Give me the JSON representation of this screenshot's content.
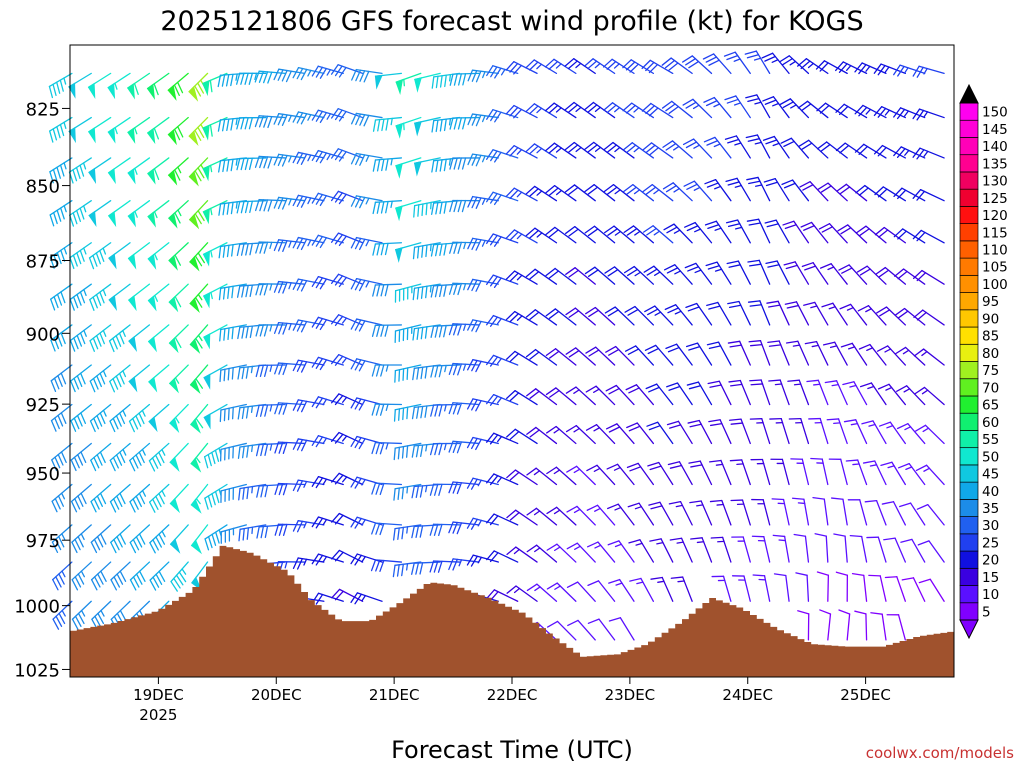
{
  "chart_data": {
    "type": "wind-barb-profile",
    "title": "2025121806 GFS forecast wind profile (kt) for KOGS",
    "xlabel": "Forecast Time (UTC)",
    "ylabel": "",
    "credit": "coolwx.com/models",
    "x_range_days_dec2025": [
      18.25,
      25.75
    ],
    "y_range_hPa": [
      805,
      1028
    ],
    "y_scale": "log-pressure (inverted)",
    "y_ticks": [
      {
        "value": 825,
        "label": "825"
      },
      {
        "value": 850,
        "label": "850"
      },
      {
        "value": 875,
        "label": "875"
      },
      {
        "value": 900,
        "label": "900"
      },
      {
        "value": 925,
        "label": "925"
      },
      {
        "value": 950,
        "label": "950"
      },
      {
        "value": 975,
        "label": "975"
      },
      {
        "value": 1000,
        "label": "1000"
      },
      {
        "value": 1025,
        "label": "1025"
      }
    ],
    "x_ticks": [
      {
        "value": 19,
        "label": "19DEC",
        "sublabel": "2025"
      },
      {
        "value": 20,
        "label": "20DEC",
        "sublabel": ""
      },
      {
        "value": 21,
        "label": "21DEC",
        "sublabel": ""
      },
      {
        "value": 22,
        "label": "22DEC",
        "sublabel": ""
      },
      {
        "value": 23,
        "label": "23DEC",
        "sublabel": ""
      },
      {
        "value": 24,
        "label": "24DEC",
        "sublabel": ""
      },
      {
        "value": 25,
        "label": "25DEC",
        "sublabel": ""
      }
    ],
    "barb_levels_hPa": [
      812,
      826,
      839,
      853,
      867,
      881,
      895,
      909,
      923,
      937,
      952,
      967,
      981,
      996,
      1011
    ],
    "wind_keyframes": [
      {
        "day": 18.25,
        "speed_low": 32,
        "speed_high": 46,
        "dir_low": 225,
        "dir_high": 240
      },
      {
        "day": 19.1,
        "speed_low": 38,
        "speed_high": 60,
        "dir_low": 225,
        "dir_high": 235
      },
      {
        "day": 19.45,
        "speed_low": 44,
        "speed_high": 78,
        "dir_low": 215,
        "dir_high": 225
      },
      {
        "day": 19.75,
        "speed_low": 35,
        "speed_high": 45,
        "dir_low": 250,
        "dir_high": 265
      },
      {
        "day": 20.3,
        "speed_low": 24,
        "speed_high": 38,
        "dir_low": 270,
        "dir_high": 280
      },
      {
        "day": 20.8,
        "speed_low": 18,
        "speed_high": 32,
        "dir_low": 300,
        "dir_high": 290
      },
      {
        "day": 21.25,
        "speed_low": 28,
        "speed_high": 56,
        "dir_low": 265,
        "dir_high": 250
      },
      {
        "day": 21.8,
        "speed_low": 24,
        "speed_high": 40,
        "dir_low": 280,
        "dir_high": 270
      },
      {
        "day": 22.3,
        "speed_low": 14,
        "speed_high": 28,
        "dir_low": 310,
        "dir_high": 300
      },
      {
        "day": 22.8,
        "speed_low": 10,
        "speed_high": 24,
        "dir_low": 320,
        "dir_high": 305
      },
      {
        "day": 23.4,
        "speed_low": 14,
        "speed_high": 30,
        "dir_low": 340,
        "dir_high": 300
      },
      {
        "day": 24.2,
        "speed_low": 12,
        "speed_high": 26,
        "dir_low": 350,
        "dir_high": 330
      },
      {
        "day": 24.8,
        "speed_low": 8,
        "speed_high": 22,
        "dir_low": 10,
        "dir_high": 300
      },
      {
        "day": 25.75,
        "speed_low": 8,
        "speed_high": 26,
        "dir_low": 330,
        "dir_high": 285
      }
    ],
    "surface_pressure_hPa": [
      {
        "day": 18.25,
        "p": 1010
      },
      {
        "day": 18.6,
        "p": 1007
      },
      {
        "day": 19.0,
        "p": 1002
      },
      {
        "day": 19.3,
        "p": 994
      },
      {
        "day": 19.55,
        "p": 977
      },
      {
        "day": 19.8,
        "p": 980
      },
      {
        "day": 20.1,
        "p": 987
      },
      {
        "day": 20.3,
        "p": 998
      },
      {
        "day": 20.55,
        "p": 1006
      },
      {
        "day": 20.8,
        "p": 1006
      },
      {
        "day": 21.05,
        "p": 999
      },
      {
        "day": 21.3,
        "p": 991
      },
      {
        "day": 21.5,
        "p": 992
      },
      {
        "day": 21.8,
        "p": 997
      },
      {
        "day": 22.1,
        "p": 1003
      },
      {
        "day": 22.35,
        "p": 1012
      },
      {
        "day": 22.6,
        "p": 1020
      },
      {
        "day": 22.9,
        "p": 1019
      },
      {
        "day": 23.15,
        "p": 1015
      },
      {
        "day": 23.45,
        "p": 1006
      },
      {
        "day": 23.7,
        "p": 997
      },
      {
        "day": 23.95,
        "p": 1001
      },
      {
        "day": 24.25,
        "p": 1009
      },
      {
        "day": 24.55,
        "p": 1015
      },
      {
        "day": 24.85,
        "p": 1016
      },
      {
        "day": 25.15,
        "p": 1016
      },
      {
        "day": 25.45,
        "p": 1012
      },
      {
        "day": 25.75,
        "p": 1010
      }
    ],
    "colorbar": {
      "labels": [
        "5",
        "10",
        "15",
        "20",
        "25",
        "30",
        "35",
        "40",
        "45",
        "50",
        "55",
        "60",
        "65",
        "70",
        "75",
        "80",
        "85",
        "90",
        "95",
        "100",
        "105",
        "110",
        "115",
        "120",
        "125",
        "130",
        "135",
        "140",
        "145",
        "150"
      ],
      "colors": [
        "#8000ff",
        "#5a10ff",
        "#3a00e0",
        "#1010e0",
        "#2040f0",
        "#2060f0",
        "#1c8ce8",
        "#10a8e8",
        "#10c8e0",
        "#10e8d0",
        "#10f0a8",
        "#10f070",
        "#20f030",
        "#60f020",
        "#a0f020",
        "#e8f010",
        "#ffe000",
        "#ffc800",
        "#ffa800",
        "#ff9000",
        "#ff7a00",
        "#ff6000",
        "#ff4000",
        "#ff1010",
        "#f00030",
        "#f00060",
        "#ff0090",
        "#ff00b8",
        "#ff00d8",
        "#ff00f0"
      ]
    }
  }
}
